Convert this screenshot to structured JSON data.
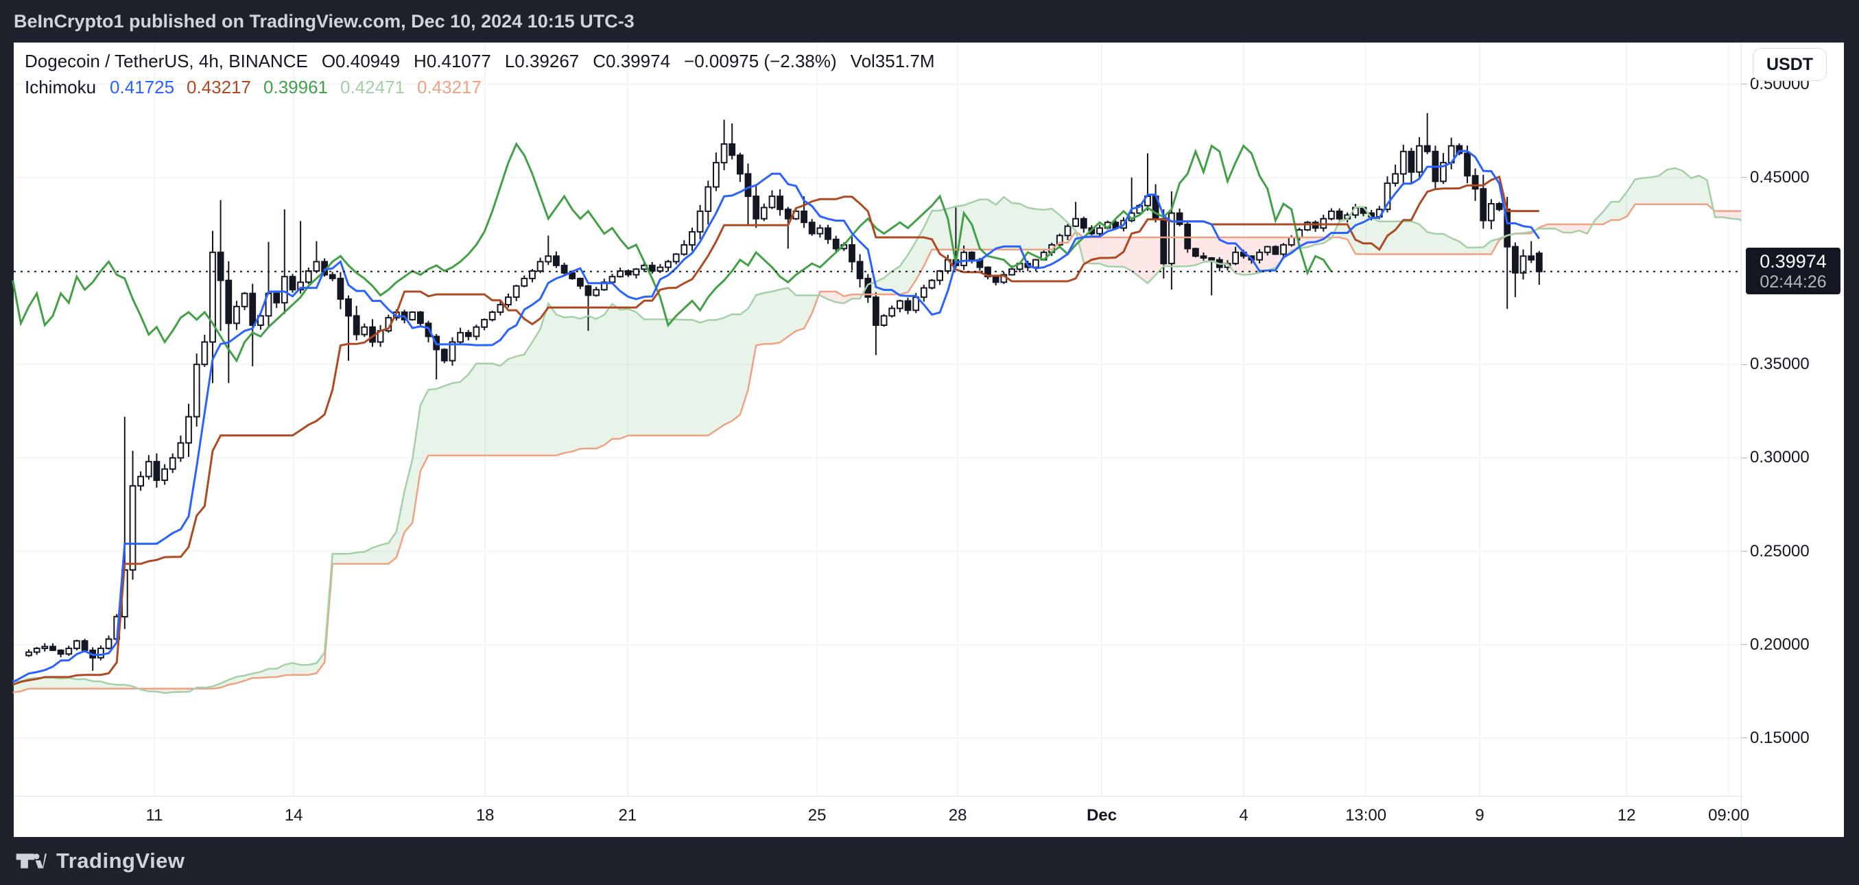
{
  "title_bar": {
    "text": "BeInCrypto1 published on TradingView.com, Dec 10, 2024 10:15 UTC-3"
  },
  "legend": {
    "symbol": "Dogecoin / TetherUS, 4h, BINANCE",
    "open": "O0.40949",
    "high": "H0.41077",
    "low": "L0.39267",
    "close": "C0.39974",
    "change": "−0.00975 (−2.38%)",
    "volume": "Vol351.7M",
    "indicator": "Ichimoku",
    "values": [
      {
        "text": "0.41725",
        "color": "#2962FF"
      },
      {
        "text": "0.43217",
        "color": "#AE4A23"
      },
      {
        "text": "0.39961",
        "color": "#43A047"
      },
      {
        "text": "0.42471",
        "color": "#A5D0A7"
      },
      {
        "text": "0.43217",
        "color": "#F0A183"
      }
    ]
  },
  "price_scale": {
    "currency_button": "USDT",
    "ticks": [
      "0.50000",
      "0.45000",
      "0.35000",
      "0.30000",
      "0.25000",
      "0.20000",
      "0.15000"
    ],
    "tick_values": [
      0.5,
      0.45,
      0.35,
      0.3,
      0.25,
      0.2,
      0.15
    ],
    "last_price": "0.39974",
    "countdown": "02:44:26"
  },
  "time_scale": {
    "ticks": [
      {
        "label": "11",
        "x": 0.0814,
        "bold": false
      },
      {
        "label": "14",
        "x": 0.1621,
        "bold": false
      },
      {
        "label": "18",
        "x": 0.2729,
        "bold": false
      },
      {
        "label": "21",
        "x": 0.3554,
        "bold": false
      },
      {
        "label": "25",
        "x": 0.4651,
        "bold": false
      },
      {
        "label": "28",
        "x": 0.5465,
        "bold": false
      },
      {
        "label": "Dec",
        "x": 0.6299,
        "bold": true
      },
      {
        "label": "4",
        "x": 0.7121,
        "bold": false
      },
      {
        "label": "13:00",
        "x": 0.7828,
        "bold": false
      },
      {
        "label": "9",
        "x": 0.8487,
        "bold": false
      },
      {
        "label": "12",
        "x": 0.9337,
        "bold": false
      },
      {
        "label": "09:00",
        "x": 0.9929,
        "bold": false
      }
    ]
  },
  "bottom_bar": {
    "brand": "TradingView"
  },
  "chart_data": {
    "type": "candlestick",
    "title": "Dogecoin / TetherUS, 4h, BINANCE",
    "overlay_indicator": "Ichimoku Cloud (9, 26, 52, 26)",
    "ylim": [
      0.1191,
      0.5223
    ],
    "x_range_bars": [
      -1.89,
      214.25
    ],
    "bars": 190,
    "prehistory_bars": 80,
    "price_gridlines": [
      0.5,
      0.45,
      0.35,
      0.3,
      0.25,
      0.2,
      0.15
    ],
    "current_price": 0.39974,
    "closes": [
      0.196,
      0.198,
      0.199,
      0.197,
      0.195,
      0.198,
      0.202,
      0.197,
      0.193,
      0.198,
      0.203,
      0.215,
      0.24,
      0.285,
      0.29,
      0.298,
      0.288,
      0.294,
      0.3,
      0.308,
      0.322,
      0.35,
      0.362,
      0.41,
      0.395,
      0.372,
      0.381,
      0.388,
      0.371,
      0.376,
      0.388,
      0.383,
      0.397,
      0.39,
      0.394,
      0.4,
      0.405,
      0.398,
      0.396,
      0.385,
      0.376,
      0.366,
      0.37,
      0.362,
      0.368,
      0.375,
      0.378,
      0.374,
      0.378,
      0.372,
      0.365,
      0.358,
      0.352,
      0.362,
      0.367,
      0.365,
      0.37,
      0.374,
      0.378,
      0.382,
      0.386,
      0.392,
      0.396,
      0.4,
      0.405,
      0.408,
      0.403,
      0.399,
      0.396,
      0.392,
      0.387,
      0.39,
      0.394,
      0.397,
      0.4,
      0.398,
      0.401,
      0.403,
      0.4,
      0.402,
      0.405,
      0.409,
      0.414,
      0.421,
      0.432,
      0.445,
      0.458,
      0.468,
      0.462,
      0.452,
      0.44,
      0.428,
      0.434,
      0.44,
      0.433,
      0.428,
      0.432,
      0.426,
      0.42,
      0.423,
      0.417,
      0.412,
      0.414,
      0.405,
      0.396,
      0.386,
      0.371,
      0.376,
      0.38,
      0.384,
      0.379,
      0.386,
      0.391,
      0.395,
      0.4,
      0.406,
      0.403,
      0.41,
      0.406,
      0.402,
      0.397,
      0.394,
      0.398,
      0.401,
      0.404,
      0.402,
      0.406,
      0.41,
      0.414,
      0.419,
      0.424,
      0.428,
      0.423,
      0.42,
      0.423,
      0.426,
      0.423,
      0.427,
      0.431,
      0.435,
      0.44,
      0.428,
      0.404,
      0.431,
      0.425,
      0.412,
      0.408,
      0.407,
      0.406,
      0.402,
      0.404,
      0.41,
      0.408,
      0.406,
      0.41,
      0.413,
      0.409,
      0.414,
      0.418,
      0.422,
      0.426,
      0.423,
      0.428,
      0.432,
      0.428,
      0.43,
      0.434,
      0.431,
      0.429,
      0.433,
      0.447,
      0.452,
      0.464,
      0.453,
      0.467,
      0.464,
      0.448,
      0.458,
      0.467,
      0.463,
      0.451,
      0.444,
      0.427,
      0.436,
      0.433,
      0.413,
      0.399,
      0.408,
      0.406,
      0.39974
    ],
    "pre_close_anchors": [
      [
        -80,
        0.162
      ],
      [
        -65,
        0.17
      ],
      [
        -52,
        0.165
      ],
      [
        -40,
        0.175
      ],
      [
        -30,
        0.19
      ],
      [
        -24,
        0.186
      ],
      [
        -16,
        0.17
      ],
      [
        -10,
        0.168
      ],
      [
        -5,
        0.183
      ],
      [
        -1,
        0.192
      ]
    ],
    "wick_highs": {
      "12": 0.322,
      "23": 0.4215,
      "24": 0.438,
      "30": 0.4156,
      "32": 0.433,
      "34": 0.4267,
      "36": 0.416,
      "65": 0.419,
      "87": 0.481,
      "88": 0.479,
      "97": 0.44,
      "116": 0.434,
      "131": 0.437,
      "138": 0.45,
      "140": 0.463,
      "171": 0.457,
      "175": 0.4845,
      "181": 0.4549,
      "188": 0.416
    },
    "wick_lows": {
      "8": 0.186,
      "24": 0.368,
      "25": 0.34,
      "28": 0.349,
      "40": 0.352,
      "51": 0.342,
      "70": 0.368,
      "90": 0.425,
      "95": 0.412,
      "106": 0.355,
      "142": 0.396,
      "148": 0.387,
      "181": 0.4375,
      "185": 0.3797,
      "186": 0.386
    },
    "last_candle": {
      "open": 0.40949,
      "high": 0.41077,
      "low": 0.39267,
      "close": 0.39974
    },
    "colors": {
      "up": "#FFFFFF",
      "down": "#131722",
      "outline": "#131722",
      "tenkan": "#2962FF",
      "kijun": "#AE4A23",
      "chikou": "#43A047",
      "span_a": "#A5D0A7",
      "span_b": "#F0A183",
      "cloud_green": "rgba(67,160,71,0.12)",
      "cloud_red": "rgba(244,67,54,0.12)",
      "grid": "#F0F2F6",
      "axis_border": "#E0E3EB",
      "text": "#131722",
      "price_line": "#131722",
      "label_bg": "#131722",
      "countdown_text": "#B2B5BE"
    }
  }
}
